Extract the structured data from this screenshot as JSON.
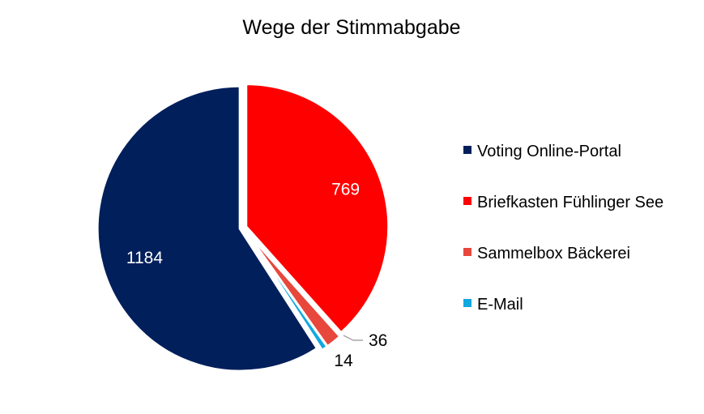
{
  "chart_data": {
    "type": "pie",
    "title": "Wege der Stimmabgabe",
    "start_angle": "top",
    "direction": "clockwise",
    "legend_position": "right",
    "slices": [
      {
        "label": "Briefkasten Fühlinger See",
        "value": 769,
        "color": "#FF0000",
        "label_text": "769",
        "label_color": "#FFFFFF"
      },
      {
        "label": "Sammelbox Bäckerei",
        "value": 36,
        "color": "#E8473C",
        "label_text": "36",
        "label_color": "#000000"
      },
      {
        "label": "E-Mail",
        "value": 14,
        "color": "#11A8E0",
        "label_text": "14",
        "label_color": "#000000"
      },
      {
        "label": "Voting Online-Portal",
        "value": 1184,
        "color": "#001F5B",
        "label_text": "1184",
        "label_color": "#FFFFFF"
      }
    ],
    "legend_order": [
      "Voting Online-Portal",
      "Briefkasten Fühlinger See",
      "Sammelbox Bäckerei",
      "E-Mail"
    ]
  }
}
